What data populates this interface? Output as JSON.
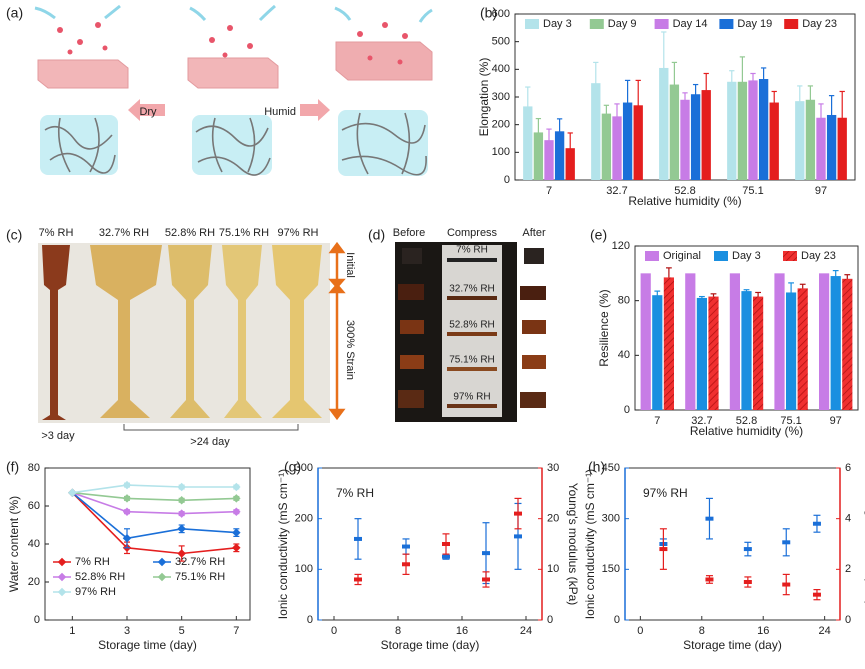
{
  "panel_labels": [
    "(a)",
    "(b)",
    "(c)",
    "(d)",
    "(e)",
    "(f)",
    "(g)",
    "(h)"
  ],
  "panel_a": {
    "left_arrow": "Dry",
    "right_arrow": "Humid"
  },
  "panel_c": {
    "columns": [
      "7% RH",
      "32.7% RH",
      "52.8% RH",
      "75.1% RH",
      "97% RH"
    ],
    "states": [
      "Initial",
      "300% Strain"
    ],
    "notes": [
      ">3 day",
      ">24 day"
    ]
  },
  "panel_d": {
    "columns": [
      "Before",
      "Compress",
      "After"
    ],
    "rows": [
      "7% RH",
      "32.7% RH",
      "52.8% RH",
      "75.1% RH",
      "97% RH"
    ]
  },
  "chart_data": [
    {
      "type": "bar",
      "x_label": "Relative humidity (%)",
      "y_label": "Elongation (%)",
      "categories": [
        "7",
        "32.7",
        "52.8",
        "75.1",
        "97"
      ],
      "ylim": [
        0,
        600
      ],
      "yticks": [
        0,
        100,
        200,
        300,
        400,
        500,
        600
      ],
      "legend": "top",
      "series": [
        {
          "name": "Day 3",
          "color": "#b3e3ea",
          "values": [
            266,
            350,
            405,
            355,
            285
          ],
          "errors": [
            70,
            75,
            130,
            40,
            55
          ]
        },
        {
          "name": "Day 9",
          "color": "#93c993",
          "values": [
            172,
            240,
            345,
            355,
            290
          ],
          "errors": [
            50,
            30,
            80,
            90,
            50
          ]
        },
        {
          "name": "Day 14",
          "color": "#c77ce6",
          "values": [
            144,
            230,
            290,
            360,
            225
          ],
          "errors": [
            40,
            45,
            25,
            25,
            50
          ]
        },
        {
          "name": "Day 19",
          "color": "#1a6fd8",
          "values": [
            176,
            280,
            310,
            365,
            235
          ],
          "errors": [
            45,
            80,
            35,
            40,
            70
          ]
        },
        {
          "name": "Day 23",
          "color": "#e41e1e",
          "values": [
            115,
            270,
            325,
            280,
            225
          ],
          "errors": [
            55,
            90,
            60,
            40,
            95
          ]
        }
      ]
    },
    {
      "type": "bar",
      "x_label": "Relative humidity (%)",
      "y_label": "Resilience (%)",
      "categories": [
        "7",
        "32.7",
        "52.8",
        "75.1",
        "97"
      ],
      "ylim": [
        0,
        120
      ],
      "yticks": [
        0,
        40,
        80,
        120
      ],
      "legend": "top",
      "series": [
        {
          "name": "Original",
          "color": "#c77ce6",
          "values": [
            100,
            100,
            100,
            100,
            100
          ]
        },
        {
          "name": "Day 3",
          "color": "#1a8fe0",
          "values": [
            84,
            82,
            87,
            86,
            98
          ],
          "errors": [
            3,
            1,
            1,
            7,
            4
          ]
        },
        {
          "name": "Day 23",
          "color": "#f03030",
          "hatched": true,
          "values": [
            97,
            83,
            83,
            89,
            96
          ],
          "errors": [
            7,
            2,
            3,
            3,
            3
          ]
        }
      ]
    },
    {
      "type": "line",
      "x_label": "Storage time (day)",
      "y_label": "Water content (%)",
      "x": [
        1,
        3,
        5,
        7
      ],
      "xlim": [
        0,
        7.5
      ],
      "xticks": [
        1,
        3,
        5,
        7
      ],
      "ylim": [
        0,
        80
      ],
      "yticks": [
        0,
        20,
        40,
        60,
        80
      ],
      "legend": "lower left",
      "series": [
        {
          "name": "7% RH",
          "color": "#e41e1e",
          "values": [
            67,
            38,
            35,
            38
          ],
          "errors": [
            0,
            3,
            4,
            2
          ]
        },
        {
          "name": "32.7% RH",
          "color": "#1a6fd8",
          "values": [
            67,
            43,
            48,
            46
          ],
          "errors": [
            0,
            5,
            2,
            2
          ]
        },
        {
          "name": "52.8% RH",
          "color": "#c77ce6",
          "values": [
            67,
            57,
            56,
            57
          ],
          "errors": [
            0,
            1,
            1,
            1
          ]
        },
        {
          "name": "75.1% RH",
          "color": "#93c993",
          "values": [
            67,
            64,
            63,
            64
          ],
          "errors": [
            0,
            1,
            1,
            1
          ]
        },
        {
          "name": "97% RH",
          "color": "#b3e3ea",
          "values": [
            67,
            71,
            70,
            70
          ],
          "errors": [
            0,
            1,
            1,
            1
          ]
        }
      ]
    },
    {
      "type": "scatter",
      "annotation": "7% RH",
      "x_label": "Storage time (day)",
      "y_label": "Ionic conductivity (mS cm⁻¹)",
      "y2_label": "Young's modulus (kPa)",
      "y_color": "#1a6fd8",
      "y2_color": "#e41e1e",
      "x": [
        3,
        9,
        14,
        19,
        23
      ],
      "xlim": [
        -2,
        26
      ],
      "xticks": [
        0,
        8,
        16,
        24
      ],
      "ylim": [
        0,
        300
      ],
      "yticks": [
        0,
        100,
        200,
        300
      ],
      "y2lim": [
        0,
        30
      ],
      "y2ticks": [
        0,
        10,
        20,
        30
      ],
      "series": [
        {
          "color": "#1a6fd8",
          "values": [
            160,
            145,
            125,
            132,
            165
          ],
          "errors": [
            40,
            15,
            5,
            60,
            65
          ]
        },
        {
          "color": "#e41e1e",
          "axis": "y2",
          "values": [
            8,
            11,
            15,
            8,
            21
          ],
          "errors": [
            1,
            2,
            2,
            1.5,
            3
          ]
        }
      ]
    },
    {
      "type": "scatter",
      "annotation": "97% RH",
      "x_label": "Storage time (day)",
      "y_label": "Ionic conductivity (mS cm⁻¹)",
      "y2_label": "Young's modulus (kPa)",
      "y_color": "#1a6fd8",
      "y2_color": "#e41e1e",
      "x": [
        3,
        9,
        14,
        19,
        23
      ],
      "xlim": [
        -2,
        26
      ],
      "xticks": [
        0,
        8,
        16,
        24
      ],
      "ylim": [
        0,
        450
      ],
      "yticks": [
        0,
        150,
        300,
        450
      ],
      "y2lim": [
        0,
        6
      ],
      "y2ticks": [
        0,
        2,
        4,
        6
      ],
      "series": [
        {
          "color": "#1a6fd8",
          "values": [
            225,
            300,
            210,
            230,
            285
          ],
          "errors": [
            15,
            60,
            20,
            40,
            25
          ]
        },
        {
          "color": "#e41e1e",
          "axis": "y2",
          "values": [
            2.8,
            1.6,
            1.5,
            1.4,
            1.0
          ],
          "errors": [
            0.8,
            0.15,
            0.2,
            0.4,
            0.2
          ]
        }
      ]
    }
  ]
}
